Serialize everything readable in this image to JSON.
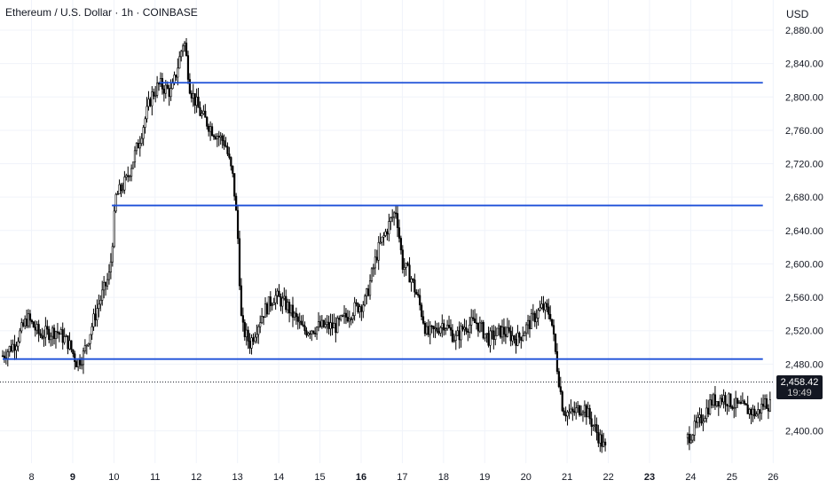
{
  "header": {
    "title": "Ethereum / U.S. Dollar · 1h · COINBASE",
    "currency": "USD"
  },
  "last_price": {
    "price": "2,458.42",
    "countdown": "19:49"
  },
  "colors": {
    "level_line": "#1c4fd8",
    "candle": "#000000",
    "grid": "#f0f3fa",
    "price_tag_bg": "#131722"
  },
  "chart_data": {
    "type": "candlestick",
    "symbol": "Ethereum / U.S. Dollar",
    "interval": "1h",
    "exchange": "COINBASE",
    "y_axis": {
      "ticks": [
        "2,880.00",
        "2,840.00",
        "2,800.00",
        "2,760.00",
        "2,720.00",
        "2,680.00",
        "2,640.00",
        "2,600.00",
        "2,560.00",
        "2,520.00",
        "2,480.00",
        "2,400.00"
      ],
      "tick_values": [
        2880,
        2840,
        2800,
        2760,
        2720,
        2680,
        2640,
        2600,
        2560,
        2520,
        2480,
        2400
      ],
      "range": [
        2360,
        2890
      ]
    },
    "x_axis": {
      "ticks": [
        "8",
        "9",
        "10",
        "11",
        "12",
        "13",
        "14",
        "15",
        "16",
        "17",
        "18",
        "19",
        "20",
        "21",
        "22",
        "23",
        "24",
        "25",
        "26"
      ],
      "tick_values": [
        8,
        9,
        10,
        11,
        12,
        13,
        14,
        15,
        16,
        17,
        18,
        19,
        20,
        21,
        22,
        23,
        24,
        25,
        26
      ],
      "bold_ticks": [
        "9",
        "16",
        "23"
      ],
      "range": [
        7.3,
        25.95
      ],
      "gaps": [
        [
          21.95,
          23.9
        ]
      ]
    },
    "horizontal_levels": [
      {
        "y": 2817,
        "x_start": 11.1,
        "x_end": 25.75
      },
      {
        "y": 2670,
        "x_start": 9.95,
        "x_end": 25.75
      },
      {
        "y": 2486,
        "x_start": 7.3,
        "x_end": 25.75
      }
    ],
    "current_price": 2458.42,
    "price_path": [
      [
        7.3,
        2490
      ],
      [
        7.6,
        2505
      ],
      [
        7.9,
        2535
      ],
      [
        8.2,
        2515
      ],
      [
        8.6,
        2520
      ],
      [
        8.9,
        2505
      ],
      [
        9.1,
        2482
      ],
      [
        9.25,
        2490
      ],
      [
        9.6,
        2548
      ],
      [
        9.9,
        2588
      ],
      [
        10.05,
        2680
      ],
      [
        10.3,
        2700
      ],
      [
        10.6,
        2745
      ],
      [
        10.9,
        2800
      ],
      [
        11.1,
        2815
      ],
      [
        11.4,
        2805
      ],
      [
        11.6,
        2848
      ],
      [
        11.7,
        2870
      ],
      [
        11.85,
        2810
      ],
      [
        12.1,
        2780
      ],
      [
        12.4,
        2760
      ],
      [
        12.7,
        2745
      ],
      [
        12.9,
        2700
      ],
      [
        13.0,
        2640
      ],
      [
        13.1,
        2525
      ],
      [
        13.3,
        2505
      ],
      [
        13.6,
        2540
      ],
      [
        13.9,
        2562
      ],
      [
        14.2,
        2550
      ],
      [
        14.6,
        2520
      ],
      [
        15.0,
        2525
      ],
      [
        15.4,
        2525
      ],
      [
        15.8,
        2545
      ],
      [
        16.1,
        2555
      ],
      [
        16.4,
        2615
      ],
      [
        16.7,
        2650
      ],
      [
        16.85,
        2665
      ],
      [
        17.0,
        2600
      ],
      [
        17.2,
        2585
      ],
      [
        17.4,
        2555
      ],
      [
        17.6,
        2515
      ],
      [
        17.8,
        2520
      ],
      [
        18.0,
        2530
      ],
      [
        18.3,
        2510
      ],
      [
        18.5,
        2525
      ],
      [
        18.8,
        2530
      ],
      [
        19.1,
        2510
      ],
      [
        19.4,
        2520
      ],
      [
        19.8,
        2510
      ],
      [
        20.1,
        2530
      ],
      [
        20.4,
        2548
      ],
      [
        20.6,
        2540
      ],
      [
        20.75,
        2480
      ],
      [
        20.9,
        2425
      ],
      [
        21.1,
        2420
      ],
      [
        21.4,
        2430
      ],
      [
        21.7,
        2400
      ],
      [
        21.95,
        2375
      ],
      [
        23.9,
        2390
      ],
      [
        24.2,
        2410
      ],
      [
        24.5,
        2435
      ],
      [
        24.8,
        2440
      ],
      [
        25.1,
        2430
      ],
      [
        25.4,
        2425
      ],
      [
        25.6,
        2420
      ],
      [
        25.8,
        2435
      ],
      [
        25.95,
        2430
      ]
    ]
  }
}
